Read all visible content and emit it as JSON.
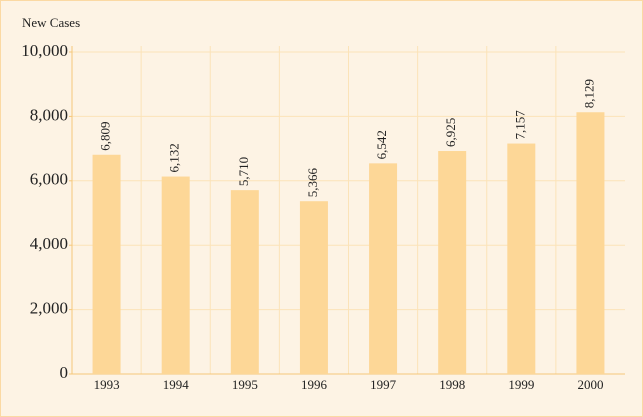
{
  "chart_data": {
    "type": "bar",
    "title": "New Cases",
    "categories": [
      "1993",
      "1994",
      "1995",
      "1996",
      "1997",
      "1998",
      "1999",
      "2000"
    ],
    "values": [
      6809,
      6132,
      5710,
      5366,
      6542,
      6925,
      7157,
      8129
    ],
    "value_labels": [
      "6,809",
      "6,132",
      "5,710",
      "5,366",
      "6,542",
      "6,925",
      "7,157",
      "8,129"
    ],
    "color": "#fdd797",
    "ylim": [
      0,
      10000
    ],
    "yticks": [
      0,
      {
        "value": 2000,
        "label": "2,000"
      },
      {
        "value": 4000,
        "label": "4,000"
      },
      {
        "value": 6000,
        "label": "6,000"
      },
      {
        "value": 8000,
        "label": "8,000"
      },
      {
        "value": 10000,
        "label": "10,000"
      }
    ],
    "grid": true
  }
}
